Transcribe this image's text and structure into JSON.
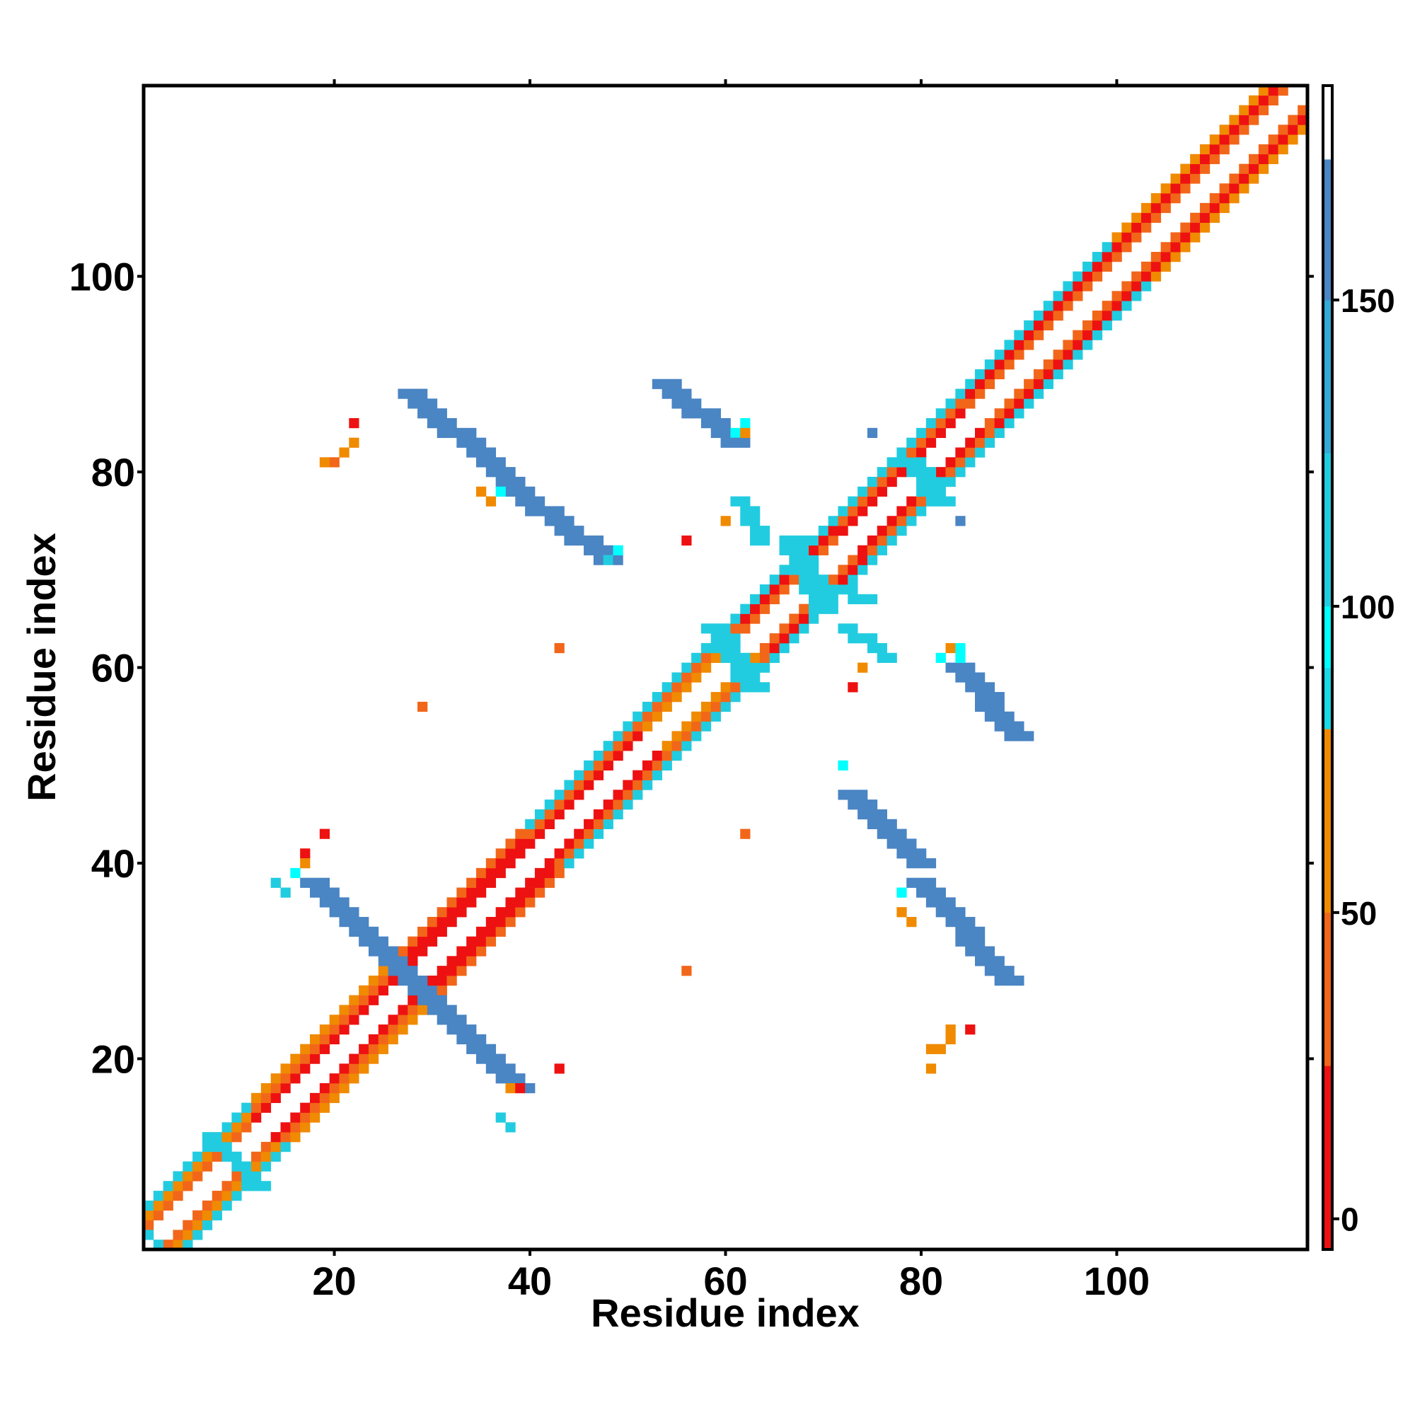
{
  "chart_data": {
    "type": "heatmap",
    "title": "",
    "xlabel": "Residue index",
    "ylabel": "Residue index",
    "xlim": [
      0.5,
      119.5
    ],
    "ylim": [
      0.5,
      119.5
    ],
    "xticks": [
      20,
      40,
      60,
      80,
      100
    ],
    "yticks": [
      20,
      40,
      60,
      80,
      100
    ],
    "colorbar": {
      "ticks": [
        0,
        50,
        100,
        150
      ],
      "range": [
        -5,
        185
      ],
      "bands": [
        {
          "from": -5,
          "to": 25,
          "color": "#ee1111"
        },
        {
          "from": 25,
          "to": 50,
          "color": "#f2661a"
        },
        {
          "from": 50,
          "to": 80,
          "color": "#f08a00"
        },
        {
          "from": 80,
          "to": 90,
          "color": "#1ad8e6"
        },
        {
          "from": 90,
          "to": 100,
          "color": "#00ffff"
        },
        {
          "from": 100,
          "to": 125,
          "color": "#22cce0"
        },
        {
          "from": 125,
          "to": 150,
          "color": "#33aad8"
        },
        {
          "from": 150,
          "to": 173,
          "color": "#4a85c4"
        },
        {
          "from": 173,
          "to": 185,
          "color": "#ffffff"
        }
      ]
    },
    "colors": {
      "red": "#ee1111",
      "orange_red": "#f2661a",
      "orange": "#f08a00",
      "cyan": "#22cce0",
      "bright_cyan": "#00ffff",
      "steel_blue": "#4a85c4"
    },
    "diagonal_bands": [
      {
        "from": 1,
        "to": 12,
        "offsets": [
          2,
          3,
          4
        ],
        "colors": [
          "orange_red",
          "orange",
          "cyan"
        ]
      },
      {
        "from": 12,
        "to": 27,
        "offsets": [
          2,
          3,
          4
        ],
        "colors": [
          "red",
          "orange_red",
          "orange"
        ]
      },
      {
        "from": 27,
        "to": 40,
        "offsets": [
          2,
          3,
          4
        ],
        "colors": [
          "red",
          "red",
          "orange_red"
        ]
      },
      {
        "from": 40,
        "to": 52,
        "offsets": [
          2,
          3,
          4
        ],
        "colors": [
          "red",
          "orange_red",
          "cyan"
        ]
      },
      {
        "from": 52,
        "to": 62,
        "offsets": [
          2,
          3,
          4
        ],
        "colors": [
          "orange",
          "orange_red",
          "cyan"
        ]
      },
      {
        "from": 62,
        "to": 72,
        "offsets": [
          2,
          3,
          4
        ],
        "colors": [
          "orange_red",
          "red",
          "cyan"
        ]
      },
      {
        "from": 72,
        "to": 85,
        "offsets": [
          2,
          3,
          4
        ],
        "colors": [
          "red",
          "orange_red",
          "cyan"
        ]
      },
      {
        "from": 85,
        "to": 100,
        "offsets": [
          2,
          3,
          4
        ],
        "colors": [
          "orange_red",
          "red",
          "cyan"
        ]
      },
      {
        "from": 100,
        "to": 119,
        "offsets": [
          2,
          3,
          4
        ],
        "colors": [
          "orange_red",
          "red",
          "orange"
        ]
      }
    ],
    "strands": [
      {
        "x0": 27,
        "y0": 28,
        "x1": 38,
        "y1": 17,
        "width": 3,
        "color": "steel_blue"
      },
      {
        "x0": 17,
        "y0": 38,
        "x1": 26,
        "y1": 29,
        "width": 3,
        "color": "steel_blue"
      },
      {
        "x0": 27,
        "y0": 88,
        "x1": 37,
        "y1": 79,
        "width": 3,
        "color": "steel_blue"
      },
      {
        "x0": 38,
        "y0": 78,
        "x1": 47,
        "y1": 71,
        "width": 3,
        "color": "steel_blue"
      },
      {
        "x0": 53,
        "y0": 89,
        "x1": 60,
        "y1": 83,
        "width": 3,
        "color": "steel_blue"
      },
      {
        "x0": 61,
        "y0": 77,
        "x1": 63,
        "y1": 73,
        "width": 2,
        "color": "cyan"
      },
      {
        "x0": 58,
        "y0": 64,
        "x1": 62,
        "y1": 58,
        "width": 3,
        "color": "cyan"
      },
      {
        "x0": 72,
        "y0": 64,
        "x1": 76,
        "y1": 61,
        "width": 2,
        "color": "cyan"
      },
      {
        "x0": 78,
        "y0": 81,
        "x1": 81,
        "y1": 77,
        "width": 3,
        "color": "cyan"
      },
      {
        "x0": 72,
        "y0": 47,
        "x1": 79,
        "y1": 40,
        "width": 3,
        "color": "steel_blue"
      },
      {
        "x0": 79,
        "y0": 38,
        "x1": 88,
        "y1": 28,
        "width": 3,
        "color": "steel_blue"
      },
      {
        "x0": 83,
        "y0": 60,
        "x1": 89,
        "y1": 53,
        "width": 3,
        "color": "steel_blue"
      },
      {
        "x0": 66,
        "y0": 73,
        "x1": 69,
        "y1": 66,
        "width": 3,
        "color": "cyan"
      },
      {
        "x0": 68,
        "y0": 69,
        "x1": 74,
        "y1": 67,
        "width": 2,
        "color": "cyan"
      },
      {
        "x0": 7,
        "y0": 12,
        "x1": 12,
        "y1": 7,
        "width": 2,
        "color": "cyan"
      }
    ],
    "cells": [
      {
        "x": 1,
        "y": 2,
        "color": "cyan"
      },
      {
        "x": 2,
        "y": 1,
        "color": "cyan"
      },
      {
        "x": 14,
        "y": 38,
        "color": "cyan"
      },
      {
        "x": 15,
        "y": 37,
        "color": "cyan"
      },
      {
        "x": 16,
        "y": 39,
        "color": "bright_cyan"
      },
      {
        "x": 17,
        "y": 41,
        "color": "red"
      },
      {
        "x": 17,
        "y": 40,
        "color": "orange"
      },
      {
        "x": 19,
        "y": 43,
        "color": "red"
      },
      {
        "x": 22,
        "y": 85,
        "color": "red"
      },
      {
        "x": 20,
        "y": 81,
        "color": "orange_red"
      },
      {
        "x": 21,
        "y": 82,
        "color": "orange"
      },
      {
        "x": 22,
        "y": 83,
        "color": "orange"
      },
      {
        "x": 19,
        "y": 81,
        "color": "orange"
      },
      {
        "x": 29,
        "y": 56,
        "color": "orange_red"
      },
      {
        "x": 35,
        "y": 78,
        "color": "orange"
      },
      {
        "x": 36,
        "y": 77,
        "color": "orange"
      },
      {
        "x": 37,
        "y": 78,
        "color": "bright_cyan"
      },
      {
        "x": 38,
        "y": 17,
        "color": "orange"
      },
      {
        "x": 39,
        "y": 17,
        "color": "red"
      },
      {
        "x": 37,
        "y": 14,
        "color": "cyan"
      },
      {
        "x": 38,
        "y": 13,
        "color": "cyan"
      },
      {
        "x": 43,
        "y": 19,
        "color": "red"
      },
      {
        "x": 43,
        "y": 62,
        "color": "orange_red"
      },
      {
        "x": 48,
        "y": 71,
        "color": "cyan"
      },
      {
        "x": 49,
        "y": 72,
        "color": "bright_cyan"
      },
      {
        "x": 56,
        "y": 29,
        "color": "orange_red"
      },
      {
        "x": 56,
        "y": 73,
        "color": "red"
      },
      {
        "x": 60,
        "y": 75,
        "color": "orange"
      },
      {
        "x": 61,
        "y": 84,
        "color": "bright_cyan"
      },
      {
        "x": 62,
        "y": 85,
        "color": "bright_cyan"
      },
      {
        "x": 62,
        "y": 84,
        "color": "orange"
      },
      {
        "x": 62,
        "y": 43,
        "color": "orange_red"
      },
      {
        "x": 72,
        "y": 50,
        "color": "bright_cyan"
      },
      {
        "x": 73,
        "y": 58,
        "color": "red"
      },
      {
        "x": 74,
        "y": 60,
        "color": "orange"
      },
      {
        "x": 75,
        "y": 84,
        "color": "steel_blue"
      },
      {
        "x": 78,
        "y": 35,
        "color": "orange"
      },
      {
        "x": 79,
        "y": 34,
        "color": "orange"
      },
      {
        "x": 78,
        "y": 37,
        "color": "bright_cyan"
      },
      {
        "x": 81,
        "y": 19,
        "color": "orange"
      },
      {
        "x": 82,
        "y": 21,
        "color": "orange"
      },
      {
        "x": 81,
        "y": 21,
        "color": "orange"
      },
      {
        "x": 83,
        "y": 22,
        "color": "orange"
      },
      {
        "x": 83,
        "y": 23,
        "color": "orange"
      },
      {
        "x": 85,
        "y": 23,
        "color": "red"
      },
      {
        "x": 84,
        "y": 75,
        "color": "steel_blue"
      },
      {
        "x": 82,
        "y": 61,
        "color": "bright_cyan"
      },
      {
        "x": 84,
        "y": 61,
        "color": "bright_cyan"
      },
      {
        "x": 83,
        "y": 62,
        "color": "orange"
      },
      {
        "x": 84,
        "y": 62,
        "color": "bright_cyan"
      }
    ]
  }
}
